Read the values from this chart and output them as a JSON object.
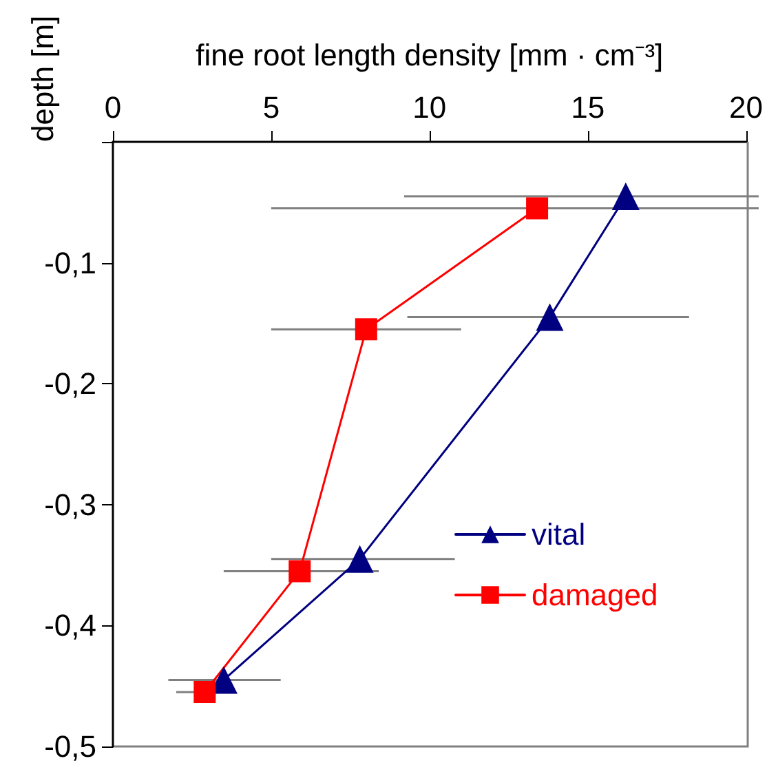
{
  "chart_data": {
    "type": "line",
    "xlabel": "fine root length density [mm · cm⁻³]",
    "ylabel": "depth [m]",
    "xlim": [
      0,
      20
    ],
    "xticks": [
      0,
      5,
      10,
      15,
      20
    ],
    "ylim": [
      -0.5,
      0
    ],
    "yticks": [
      {
        "value": 0,
        "label": null
      },
      {
        "value": -0.1,
        "label": "-0,1"
      },
      {
        "value": -0.2,
        "label": "-0,2"
      },
      {
        "value": -0.3,
        "label": "-0,3"
      },
      {
        "value": -0.4,
        "label": "-0,4"
      },
      {
        "value": -0.5,
        "label": "-0,5"
      }
    ],
    "series": [
      {
        "name": "vital",
        "color": "#000080",
        "marker": "triangle",
        "x": [
          16.2,
          13.8,
          7.8,
          3.5
        ],
        "values": [
          -0.045,
          -0.145,
          -0.345,
          -0.445
        ],
        "xerrors": [
          [
            9.2,
            20.4
          ],
          [
            9.3,
            18.2
          ],
          [
            5.0,
            10.8
          ],
          [
            1.75,
            5.3
          ]
        ]
      },
      {
        "name": "damaged",
        "color": "#ff0000",
        "marker": "square",
        "x": [
          13.4,
          8.0,
          5.9,
          2.9
        ],
        "values": [
          -0.055,
          -0.155,
          -0.355,
          -0.455
        ],
        "xerrors": [
          [
            5.0,
            20.4
          ],
          [
            5.0,
            11.0
          ],
          [
            3.5,
            8.4
          ],
          [
            2.0,
            3.7
          ]
        ]
      }
    ],
    "legend": "right",
    "grid": false,
    "line_style": "solid"
  }
}
